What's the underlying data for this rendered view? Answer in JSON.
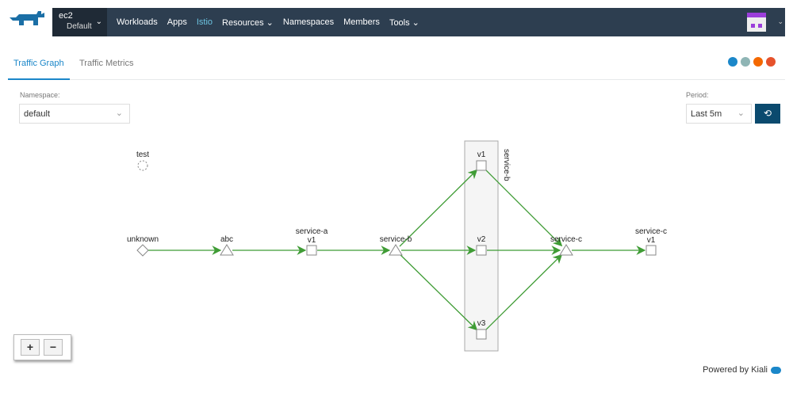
{
  "nav": {
    "cluster": "ec2",
    "project": "Default",
    "items": [
      "Workloads",
      "Apps",
      "Istio",
      "Resources",
      "Namespaces",
      "Members",
      "Tools"
    ],
    "active": "Istio"
  },
  "tabs": [
    "Traffic Graph",
    "Traffic Metrics"
  ],
  "filters": {
    "namespace_label": "Namespace:",
    "namespace_value": "default",
    "period_label": "Period:",
    "period_value": "Last 5m"
  },
  "graph": {
    "nodes": [
      {
        "id": "test",
        "label": "test",
        "shape": "dashed-circle"
      },
      {
        "id": "unknown",
        "label": "unknown",
        "shape": "diamond"
      },
      {
        "id": "abc",
        "label": "abc",
        "shape": "triangle"
      },
      {
        "id": "sa-v1",
        "label": "service-a",
        "sublabel": "v1",
        "shape": "square"
      },
      {
        "id": "sb",
        "label": "service-b",
        "shape": "triangle"
      },
      {
        "id": "sb-v1",
        "label": "v1",
        "shape": "square"
      },
      {
        "id": "sb-v2",
        "label": "v2",
        "shape": "square"
      },
      {
        "id": "sb-v3",
        "label": "v3",
        "shape": "square"
      },
      {
        "id": "sc",
        "label": "service-c",
        "shape": "triangle"
      },
      {
        "id": "sc-v1",
        "label": "service-c",
        "sublabel": "v1",
        "shape": "square"
      }
    ],
    "group_label": "service-b",
    "edges": [
      [
        "unknown",
        "abc"
      ],
      [
        "abc",
        "sa-v1"
      ],
      [
        "sa-v1",
        "sb"
      ],
      [
        "sb",
        "sb-v1"
      ],
      [
        "sb",
        "sb-v2"
      ],
      [
        "sb",
        "sb-v3"
      ],
      [
        "sb-v1",
        "sc"
      ],
      [
        "sb-v2",
        "sc"
      ],
      [
        "sb-v3",
        "sc"
      ],
      [
        "sc",
        "sc-v1"
      ]
    ],
    "edge_color": "#3f9c35"
  },
  "zoom": {
    "in": "+",
    "out": "−"
  },
  "footer": "Powered by Kiali"
}
